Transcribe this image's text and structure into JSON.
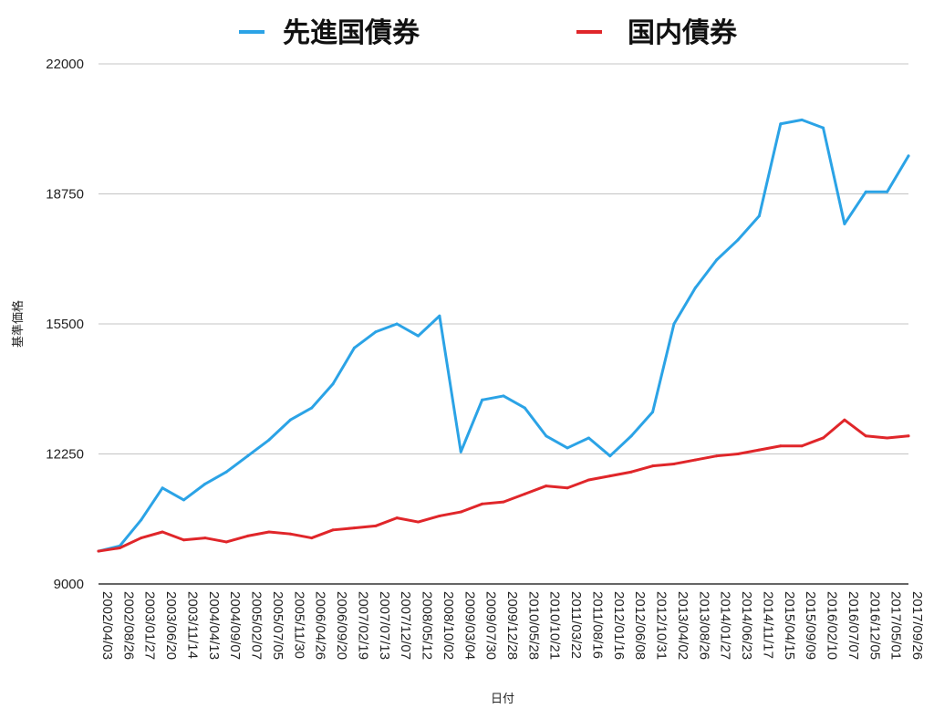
{
  "chart_data": {
    "type": "line",
    "title": "",
    "xlabel": "日付",
    "ylabel": "基準価格",
    "ylim": [
      9000,
      22000
    ],
    "yticks": [
      "22000",
      "18750",
      "15500",
      "12250",
      "9000"
    ],
    "ytick_values": [
      22000,
      18750,
      15500,
      12250,
      9000
    ],
    "grid": true,
    "legend_position": "top",
    "x": [
      "2002/04/03",
      "2002/08/26",
      "2003/01/27",
      "2003/06/20",
      "2003/11/14",
      "2004/04/13",
      "2004/09/07",
      "2005/02/07",
      "2005/07/05",
      "2005/11/30",
      "2006/04/26",
      "2006/09/20",
      "2007/02/19",
      "2007/07/13",
      "2007/12/07",
      "2008/05/12",
      "2008/10/02",
      "2009/03/04",
      "2009/07/30",
      "2009/12/28",
      "2010/05/28",
      "2010/10/21",
      "2011/03/22",
      "2011/08/16",
      "2012/01/16",
      "2012/06/08",
      "2012/10/31",
      "2013/04/02",
      "2013/08/26",
      "2014/01/27",
      "2014/06/23",
      "2014/11/17",
      "2015/04/15",
      "2015/09/09",
      "2016/02/10",
      "2016/07/07",
      "2016/12/05",
      "2017/05/01",
      "2017/09/26"
    ],
    "series": [
      {
        "name": "先進国債券",
        "color": "#2ba3e6",
        "values": [
          9820,
          9950,
          10600,
          11400,
          11100,
          11500,
          11800,
          12200,
          12600,
          13100,
          13400,
          14000,
          14900,
          15300,
          15500,
          15200,
          15700,
          12300,
          13600,
          13700,
          13400,
          12700,
          12400,
          12650,
          12200,
          12700,
          13300,
          15500,
          16400,
          17100,
          17600,
          18200,
          20500,
          20600,
          20400,
          18000,
          18800,
          18800,
          19700
        ]
      },
      {
        "name": "国内債券",
        "color": "#e0262a",
        "values": [
          9820,
          9900,
          10150,
          10300,
          10100,
          10150,
          10050,
          10200,
          10300,
          10250,
          10150,
          10350,
          10400,
          10450,
          10650,
          10550,
          10700,
          10800,
          11000,
          11050,
          11250,
          11450,
          11400,
          11600,
          11700,
          11800,
          11950,
          12000,
          12100,
          12200,
          12250,
          12350,
          12450,
          12450,
          12650,
          13100,
          12700,
          12650,
          12700
        ]
      }
    ]
  }
}
